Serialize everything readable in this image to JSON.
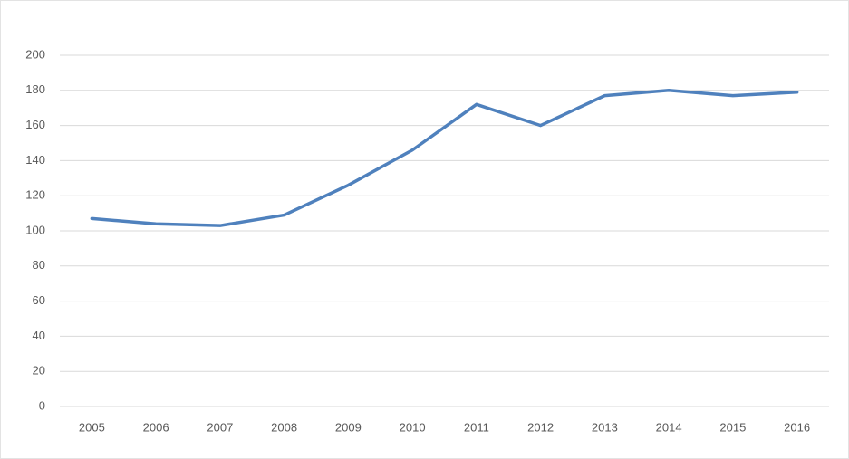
{
  "chart_data": {
    "type": "line",
    "categories": [
      "2005",
      "2006",
      "2007",
      "2008",
      "2009",
      "2010",
      "2011",
      "2012",
      "2013",
      "2014",
      "2015",
      "2016"
    ],
    "values": [
      107,
      104,
      103,
      109,
      126,
      146,
      172,
      160,
      177,
      180,
      177,
      179
    ],
    "color": "#4f81bd",
    "ylim": [
      0,
      200
    ],
    "yticks": [
      0,
      20,
      40,
      60,
      80,
      100,
      120,
      140,
      160,
      180,
      200
    ],
    "grid": true
  }
}
